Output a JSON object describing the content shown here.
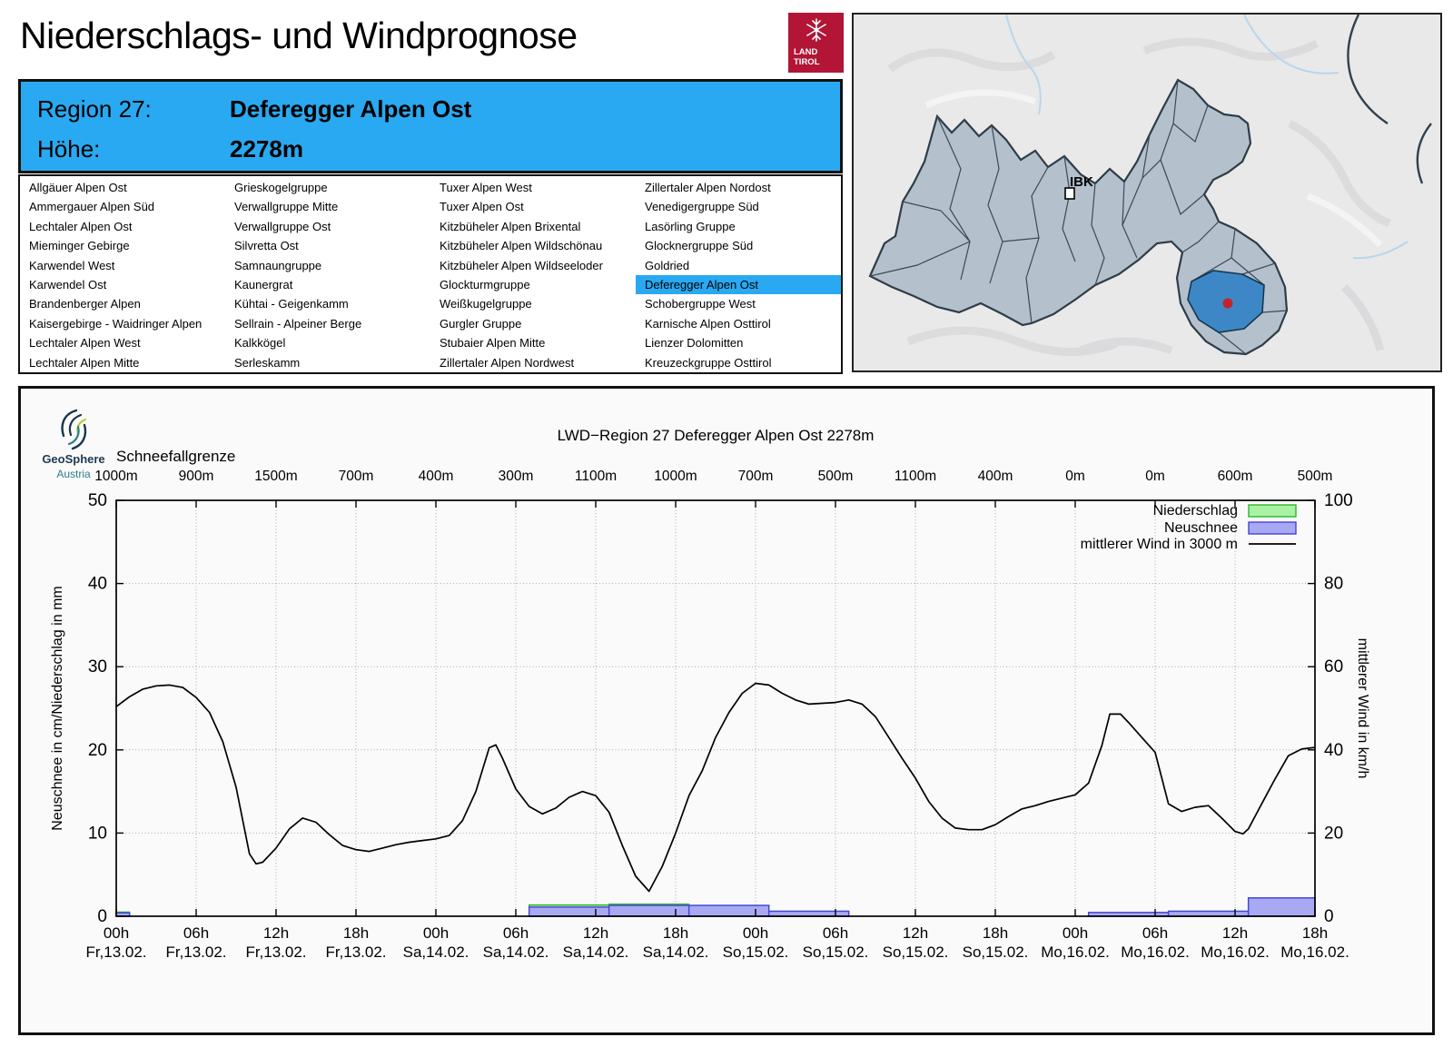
{
  "header": {
    "title": "Niederschlags- und Windprognose",
    "logo": {
      "line1": "LAND",
      "line2": "TIROL"
    }
  },
  "info_box": {
    "region_label": "Region 27:",
    "region_value": "Deferegger Alpen Ost",
    "altitude_label": "Höhe:",
    "altitude_value": "2278m"
  },
  "region_list": {
    "selected": "Deferegger Alpen Ost",
    "columns": [
      [
        "Allgäuer Alpen Ost",
        "Ammergauer Alpen Süd",
        "Lechtaler Alpen Ost",
        "Mieminger Gebirge",
        "Karwendel West",
        "Karwendel Ost",
        "Brandenberger Alpen",
        "Kaisergebirge - Waidringer Alpen",
        "Lechtaler Alpen West",
        "Lechtaler Alpen Mitte"
      ],
      [
        "Grieskogelgruppe",
        "Verwallgruppe Mitte",
        "Verwallgruppe Ost",
        "Silvretta Ost",
        "Samnaungruppe",
        "Kaunergrat",
        "Kühtai - Geigenkamm",
        "Sellrain - Alpeiner Berge",
        "Kalkkögel",
        "Serleskamm"
      ],
      [
        "Tuxer Alpen West",
        "Tuxer Alpen Ost",
        "Kitzbüheler Alpen Brixental",
        "Kitzbüheler Alpen Wildschönau",
        "Kitzbüheler Alpen Wildseeloder",
        "Glockturmgruppe",
        "Weißkugelgruppe",
        "Gurgler Gruppe",
        "Stubaier Alpen Mitte",
        "Zillertaler Alpen Nordwest"
      ],
      [
        "Zillertaler Alpen Nordost",
        "Venedigergruppe Süd",
        "Lasörling Gruppe",
        "Glocknergruppe Süd",
        "Goldried",
        "Deferegger Alpen Ost",
        "Schobergruppe West",
        "Karnische Alpen Osttirol",
        "Lienzer Dolomitten",
        "Kreuzeckgruppe Osttirol"
      ]
    ]
  },
  "map": {
    "city_label": "IBK"
  },
  "branding": {
    "geosphere_line1": "GeoSphere",
    "geosphere_line2": "Austria"
  },
  "colors": {
    "header_blue": "#29a9f1",
    "logo_red": "#b21535",
    "niederschlag_fill": "#a9f2a3",
    "niederschlag_border": "#2fb42f",
    "neuschnee_fill": "#a9a9f3",
    "neuschnee_border": "#4343da",
    "wind_line": "#000000",
    "grid_gray": "#a8a8a8",
    "map_region_fill": "#b4c0cb",
    "map_region_border": "#33434e",
    "map_highlight_fill": "#3e87c7",
    "map_marker_red": "#c5222b",
    "map_background": "#e9e9ea"
  },
  "chart_data": {
    "type": "combo",
    "title": "LWD−Region 27 Deferegger Alpen Ost 2278m",
    "snowline_label": "Schneefallgrenze",
    "snowline_per_tick": [
      "1000m",
      "900m",
      "1500m",
      "700m",
      "400m",
      "300m",
      "1100m",
      "1000m",
      "700m",
      "500m",
      "1100m",
      "400m",
      "0m",
      "0m",
      "600m",
      "500m"
    ],
    "x_ticks": [
      {
        "time": "00h",
        "date": "Fr,13.02."
      },
      {
        "time": "06h",
        "date": "Fr,13.02."
      },
      {
        "time": "12h",
        "date": "Fr,13.02."
      },
      {
        "time": "18h",
        "date": "Fr,13.02."
      },
      {
        "time": "00h",
        "date": "Sa,14.02."
      },
      {
        "time": "06h",
        "date": "Sa,14.02."
      },
      {
        "time": "12h",
        "date": "Sa,14.02."
      },
      {
        "time": "18h",
        "date": "Sa,14.02."
      },
      {
        "time": "00h",
        "date": "So,15.02."
      },
      {
        "time": "06h",
        "date": "So,15.02."
      },
      {
        "time": "12h",
        "date": "So,15.02."
      },
      {
        "time": "18h",
        "date": "So,15.02."
      },
      {
        "time": "00h",
        "date": "Mo,16.02."
      },
      {
        "time": "06h",
        "date": "Mo,16.02."
      },
      {
        "time": "12h",
        "date": "Mo,16.02."
      },
      {
        "time": "18h",
        "date": "Mo,16.02."
      }
    ],
    "x_hours_range": [
      0,
      90
    ],
    "y_left": {
      "label": "Neuschnee in cm/Niederschlag in mm",
      "ticks": [
        0,
        10,
        20,
        30,
        40,
        50
      ],
      "range": [
        0,
        50
      ]
    },
    "y_right": {
      "label": "mittlerer Wind in km/h",
      "ticks": [
        0,
        20,
        40,
        60,
        80,
        100
      ],
      "range": [
        0,
        100
      ]
    },
    "legend": [
      {
        "label": "Niederschlag",
        "swatch": "green-box"
      },
      {
        "label": "Neuschnee",
        "swatch": "blue-box"
      },
      {
        "label": "mittlerer Wind in 3000 m",
        "swatch": "line"
      }
    ],
    "bars": [
      {
        "from_h": 0,
        "to_h": 1,
        "niederschlag_mm": 0.5,
        "neuschnee_cm": 0.4
      },
      {
        "from_h": 31,
        "to_h": 37,
        "niederschlag_mm": 1.35,
        "neuschnee_cm": 1.1
      },
      {
        "from_h": 37,
        "to_h": 43,
        "niederschlag_mm": 1.45,
        "neuschnee_cm": 1.3
      },
      {
        "from_h": 43,
        "to_h": 49,
        "niederschlag_mm": 1.3,
        "neuschnee_cm": 1.3
      },
      {
        "from_h": 49,
        "to_h": 55,
        "niederschlag_mm": 0.6,
        "neuschnee_cm": 0.6
      },
      {
        "from_h": 73,
        "to_h": 79,
        "niederschlag_mm": 0.45,
        "neuschnee_cm": 0.45
      },
      {
        "from_h": 79,
        "to_h": 85,
        "niederschlag_mm": 0.6,
        "neuschnee_cm": 0.6
      },
      {
        "from_h": 85,
        "to_h": 90,
        "niederschlag_mm": 2.2,
        "neuschnee_cm": 2.2
      }
    ],
    "wind_line_kmh": [
      [
        0,
        50.4
      ],
      [
        1,
        52.8
      ],
      [
        2,
        54.6
      ],
      [
        3,
        55.4
      ],
      [
        4,
        55.6
      ],
      [
        5,
        55.0
      ],
      [
        6,
        52.6
      ],
      [
        7,
        49.0
      ],
      [
        8,
        42.0
      ],
      [
        9,
        31.0
      ],
      [
        10,
        15.0
      ],
      [
        10.5,
        12.6
      ],
      [
        11,
        13.0
      ],
      [
        12,
        16.4
      ],
      [
        13,
        21.0
      ],
      [
        14,
        23.6
      ],
      [
        15,
        22.6
      ],
      [
        16,
        19.6
      ],
      [
        17,
        17.0
      ],
      [
        18,
        16.0
      ],
      [
        19,
        15.6
      ],
      [
        20,
        16.4
      ],
      [
        21,
        17.2
      ],
      [
        22,
        17.8
      ],
      [
        23,
        18.2
      ],
      [
        24,
        18.6
      ],
      [
        25,
        19.4
      ],
      [
        26,
        23.0
      ],
      [
        27,
        30.0
      ],
      [
        28,
        40.5
      ],
      [
        28.5,
        41.2
      ],
      [
        29,
        38.0
      ],
      [
        30,
        30.6
      ],
      [
        31,
        26.4
      ],
      [
        32,
        24.6
      ],
      [
        33,
        26.0
      ],
      [
        34,
        28.6
      ],
      [
        35,
        30.0
      ],
      [
        36,
        29.0
      ],
      [
        37,
        25.0
      ],
      [
        38,
        17.0
      ],
      [
        39,
        9.6
      ],
      [
        40,
        6.0
      ],
      [
        41,
        12.0
      ],
      [
        42,
        20.0
      ],
      [
        43,
        29.0
      ],
      [
        44,
        35.0
      ],
      [
        45,
        43.0
      ],
      [
        46,
        49.0
      ],
      [
        47,
        53.6
      ],
      [
        48,
        56.0
      ],
      [
        49,
        55.6
      ],
      [
        50,
        53.6
      ],
      [
        51,
        52.0
      ],
      [
        52,
        51.0
      ],
      [
        53,
        51.2
      ],
      [
        54,
        51.4
      ],
      [
        55,
        52.0
      ],
      [
        56,
        51.0
      ],
      [
        57,
        48.0
      ],
      [
        58,
        43.0
      ],
      [
        59,
        38.0
      ],
      [
        60,
        33.2
      ],
      [
        61,
        27.6
      ],
      [
        62,
        23.6
      ],
      [
        63,
        21.2
      ],
      [
        64,
        20.8
      ],
      [
        65,
        20.8
      ],
      [
        66,
        22.0
      ],
      [
        67,
        24.0
      ],
      [
        68,
        25.8
      ],
      [
        69,
        26.6
      ],
      [
        70,
        27.6
      ],
      [
        71,
        28.4
      ],
      [
        72,
        29.2
      ],
      [
        73,
        32.0
      ],
      [
        74,
        41.0
      ],
      [
        74.6,
        48.6
      ],
      [
        75.4,
        48.6
      ],
      [
        76,
        46.6
      ],
      [
        77,
        43.0
      ],
      [
        78,
        39.4
      ],
      [
        79,
        27.0
      ],
      [
        80,
        25.2
      ],
      [
        81,
        26.2
      ],
      [
        82,
        26.6
      ],
      [
        83,
        23.6
      ],
      [
        84,
        20.4
      ],
      [
        84.6,
        19.8
      ],
      [
        85,
        21.0
      ],
      [
        86,
        27.0
      ],
      [
        87,
        33.0
      ],
      [
        88,
        38.6
      ],
      [
        89,
        40.2
      ],
      [
        90,
        40.6
      ]
    ]
  }
}
